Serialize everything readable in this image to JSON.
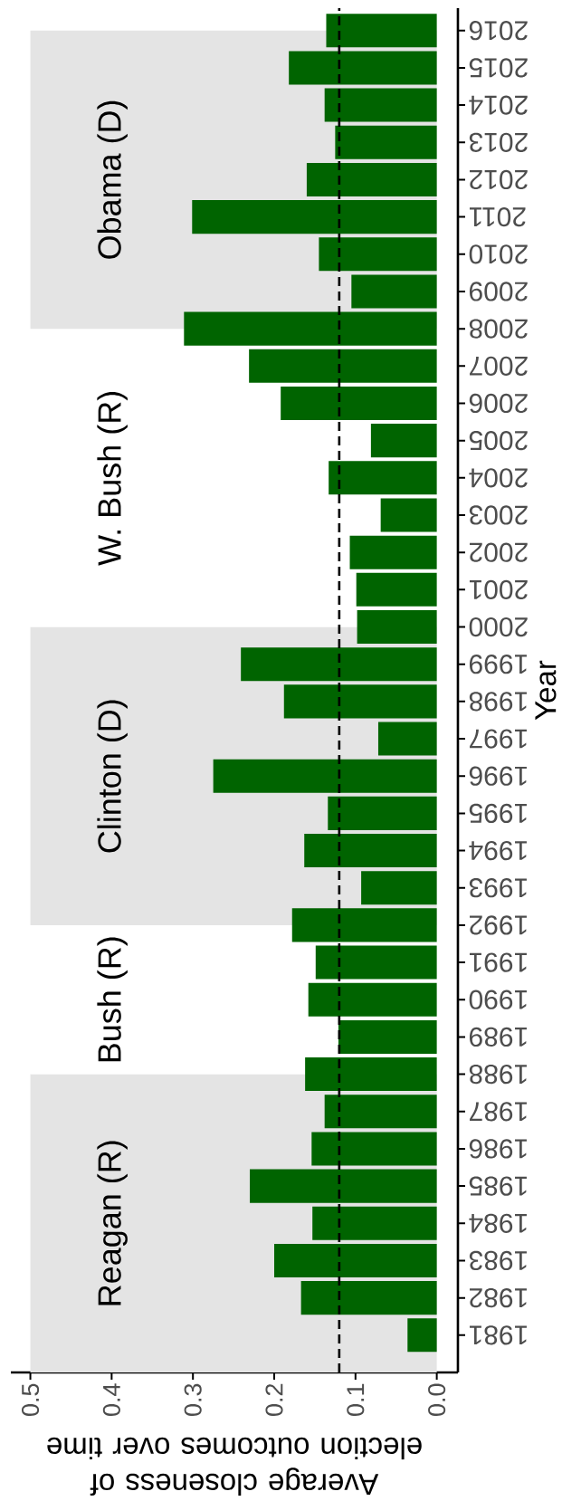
{
  "chart_data": {
    "type": "bar",
    "orientation": "horizontal",
    "xlabel": "Average closeness of election outcomes over time",
    "ylabel": "Year",
    "x": [
      1981,
      1982,
      1983,
      1984,
      1985,
      1986,
      1987,
      1988,
      1989,
      1990,
      1991,
      1992,
      1993,
      1994,
      1995,
      1996,
      1997,
      1998,
      1999,
      2000,
      2001,
      2002,
      2003,
      2004,
      2005,
      2006,
      2007,
      2008,
      2009,
      2010,
      2011,
      2012,
      2013,
      2014,
      2015,
      2016
    ],
    "values": [
      0.036,
      0.167,
      0.2,
      0.153,
      0.23,
      0.154,
      0.138,
      0.162,
      0.121,
      0.158,
      0.149,
      0.178,
      0.093,
      0.163,
      0.134,
      0.275,
      0.072,
      0.188,
      0.241,
      0.098,
      0.099,
      0.107,
      0.069,
      0.133,
      0.081,
      0.192,
      0.231,
      0.311,
      0.105,
      0.145,
      0.301,
      0.16,
      0.125,
      0.138,
      0.182,
      0.136
    ],
    "color": "#006400",
    "xlim": [
      0.524,
      -0.026
    ],
    "ylim": [
      1980,
      2016.6
    ],
    "xticks": [
      {
        "value": 0,
        "label": "0.0"
      },
      0.1,
      0.2,
      0.3,
      0.4,
      0.5
    ],
    "yticks": [
      1981,
      1982,
      1983,
      1984,
      1985,
      1986,
      1987,
      1988,
      1989,
      1990,
      1991,
      1992,
      1993,
      1994,
      1995,
      1996,
      1997,
      1998,
      1999,
      2000,
      2001,
      2002,
      2003,
      2004,
      2005,
      2006,
      2007,
      2008,
      2009,
      2010,
      2011,
      2012,
      2013,
      2014,
      2015,
      2016
    ],
    "bands": [
      {
        "axis": "y",
        "from": 1980,
        "to": 1988,
        "label": "Reagan (R)",
        "color": "#e4e4e4"
      },
      {
        "axis": "y",
        "from": 1988,
        "to": 1992,
        "label": "Bush (R)",
        "color": "#ffffff"
      },
      {
        "axis": "y",
        "from": 1992,
        "to": 2000,
        "label": "Clinton (D)",
        "color": "#e4e4e4"
      },
      {
        "axis": "y",
        "from": 2000,
        "to": 2008,
        "label": "W. Bush (R)",
        "color": "#ffffff"
      },
      {
        "axis": "y",
        "from": 2008,
        "to": 2016,
        "label": "Obama (D)",
        "color": "#e4e4e4"
      }
    ],
    "ref_lines": [
      {
        "axis": "x",
        "value": 0.12,
        "color": "#000000",
        "line_style": "dashed"
      }
    ]
  }
}
